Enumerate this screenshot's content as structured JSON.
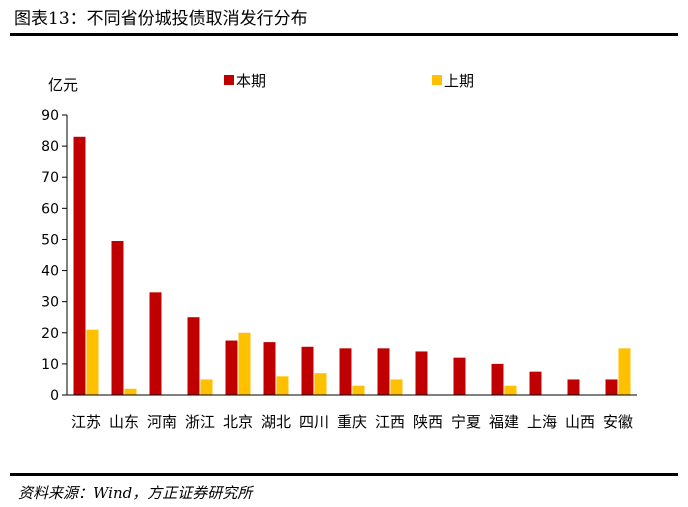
{
  "header": {
    "figure_title": "图表13：不同省份城投债取消发行分布"
  },
  "footer": {
    "source": "资料来源：Wind，方正证券研究所"
  },
  "chart_data": {
    "type": "bar",
    "unit_label": "亿元",
    "categories": [
      "江苏",
      "山东",
      "河南",
      "浙江",
      "北京",
      "湖北",
      "四川",
      "重庆",
      "江西",
      "陕西",
      "宁夏",
      "福建",
      "上海",
      "山西",
      "安徽"
    ],
    "series": [
      {
        "name": "本期",
        "color": "#C00000",
        "values": [
          83,
          49.5,
          33,
          25,
          17.5,
          17,
          15.5,
          15,
          15,
          14,
          12,
          10,
          7.5,
          5,
          5
        ]
      },
      {
        "name": "上期",
        "color": "#FFC000",
        "values": [
          21,
          2,
          0,
          5,
          20,
          6,
          7,
          3,
          5,
          0,
          0,
          3,
          0,
          0,
          15
        ]
      }
    ],
    "ylim": [
      0,
      90
    ],
    "yticks": [
      0,
      10,
      20,
      30,
      40,
      50,
      60,
      70,
      80,
      90
    ],
    "legend_position": "top",
    "grid": false
  }
}
